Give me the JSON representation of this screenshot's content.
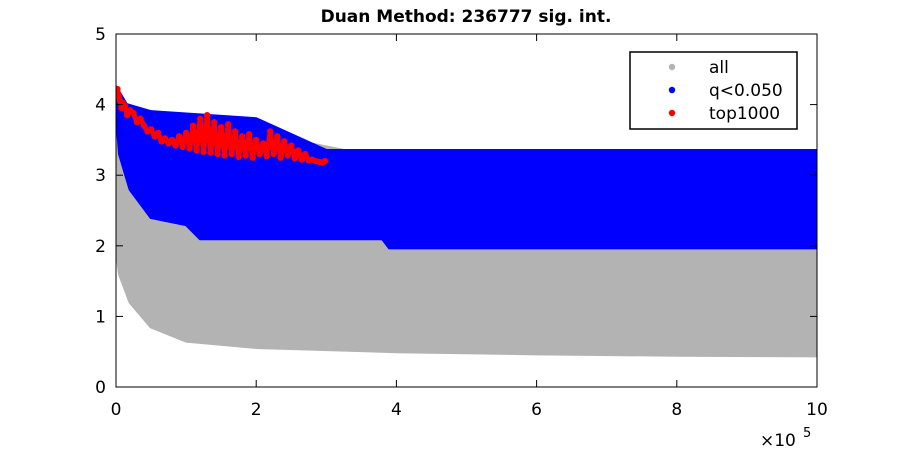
{
  "chart_data": {
    "type": "scatter",
    "title": "Duan Method: 236777 sig. int.",
    "xlabel": "",
    "ylabel": "",
    "xlim": [
      0,
      1000000
    ],
    "ylim": [
      0,
      5
    ],
    "x_exponent_label": "×10",
    "x_exponent_power": "5",
    "x_ticks": [
      {
        "value": 0,
        "label": "0"
      },
      {
        "value": 200000,
        "label": "2"
      },
      {
        "value": 400000,
        "label": "4"
      },
      {
        "value": 600000,
        "label": "6"
      },
      {
        "value": 800000,
        "label": "8"
      },
      {
        "value": 1000000,
        "label": "10"
      }
    ],
    "y_ticks": [
      {
        "value": 0,
        "label": "0"
      },
      {
        "value": 1,
        "label": "1"
      },
      {
        "value": 2,
        "label": "2"
      },
      {
        "value": 3,
        "label": "3"
      },
      {
        "value": 4,
        "label": "4"
      },
      {
        "value": 5,
        "label": "5"
      }
    ],
    "grid": false,
    "legend_position": "top-right",
    "series": [
      {
        "name": "all",
        "color": "#b3b3b3",
        "lower_envelope": [
          [
            0,
            2.0
          ],
          [
            5000,
            1.6
          ],
          [
            20000,
            1.2
          ],
          [
            50000,
            0.85
          ],
          [
            100000,
            0.65
          ],
          [
            200000,
            0.56
          ],
          [
            400000,
            0.5
          ],
          [
            600000,
            0.47
          ],
          [
            800000,
            0.45
          ],
          [
            1000000,
            0.44
          ]
        ],
        "upper_envelope": [
          [
            0,
            4.0
          ],
          [
            1000000,
            2.0
          ]
        ]
      },
      {
        "name": "q<0.050",
        "color": "#0000ff",
        "lower_envelope": [
          [
            0,
            3.95
          ],
          [
            5000,
            3.3
          ],
          [
            20000,
            2.8
          ],
          [
            50000,
            2.4
          ],
          [
            100000,
            2.3
          ],
          [
            120000,
            2.1
          ],
          [
            380000,
            2.1
          ],
          [
            390000,
            1.97
          ],
          [
            1000000,
            1.97
          ]
        ],
        "upper_envelope": [
          [
            0,
            4.25
          ],
          [
            15000,
            4.0
          ],
          [
            50000,
            3.9
          ],
          [
            200000,
            3.8
          ],
          [
            300000,
            3.35
          ],
          [
            1000000,
            3.35
          ]
        ]
      },
      {
        "name": "top1000",
        "color": "#ff0000",
        "points": [
          [
            2000,
            4.22
          ],
          [
            4000,
            4.12
          ],
          [
            6000,
            4.05
          ],
          [
            8000,
            3.95
          ],
          [
            10000,
            4.02
          ],
          [
            13000,
            3.98
          ],
          [
            16000,
            3.85
          ],
          [
            20000,
            3.92
          ],
          [
            25000,
            3.88
          ],
          [
            30000,
            3.75
          ],
          [
            35000,
            3.8
          ],
          [
            40000,
            3.7
          ],
          [
            45000,
            3.62
          ],
          [
            50000,
            3.65
          ],
          [
            55000,
            3.55
          ],
          [
            60000,
            3.6
          ],
          [
            65000,
            3.48
          ],
          [
            70000,
            3.52
          ],
          [
            75000,
            3.45
          ],
          [
            80000,
            3.5
          ],
          [
            85000,
            3.42
          ],
          [
            90000,
            3.55
          ],
          [
            95000,
            3.4
          ],
          [
            100000,
            3.6
          ],
          [
            105000,
            3.38
          ],
          [
            110000,
            3.7
          ],
          [
            115000,
            3.35
          ],
          [
            120000,
            3.8
          ],
          [
            125000,
            3.33
          ],
          [
            130000,
            3.85
          ],
          [
            135000,
            3.32
          ],
          [
            140000,
            3.75
          ],
          [
            145000,
            3.3
          ],
          [
            150000,
            3.68
          ],
          [
            155000,
            3.28
          ],
          [
            160000,
            3.72
          ],
          [
            165000,
            3.3
          ],
          [
            170000,
            3.62
          ],
          [
            175000,
            3.26
          ],
          [
            180000,
            3.55
          ],
          [
            185000,
            3.28
          ],
          [
            190000,
            3.58
          ],
          [
            195000,
            3.25
          ],
          [
            200000,
            3.5
          ],
          [
            205000,
            3.3
          ],
          [
            210000,
            3.45
          ],
          [
            215000,
            3.27
          ],
          [
            220000,
            3.62
          ],
          [
            225000,
            3.3
          ],
          [
            230000,
            3.55
          ],
          [
            235000,
            3.25
          ],
          [
            240000,
            3.48
          ],
          [
            245000,
            3.28
          ],
          [
            250000,
            3.42
          ],
          [
            255000,
            3.24
          ],
          [
            260000,
            3.35
          ],
          [
            265000,
            3.22
          ],
          [
            270000,
            3.3
          ],
          [
            275000,
            3.21
          ],
          [
            280000,
            3.22
          ],
          [
            285000,
            3.2
          ],
          [
            290000,
            3.19
          ],
          [
            295000,
            3.18
          ],
          [
            298000,
            3.2
          ]
        ]
      }
    ]
  }
}
